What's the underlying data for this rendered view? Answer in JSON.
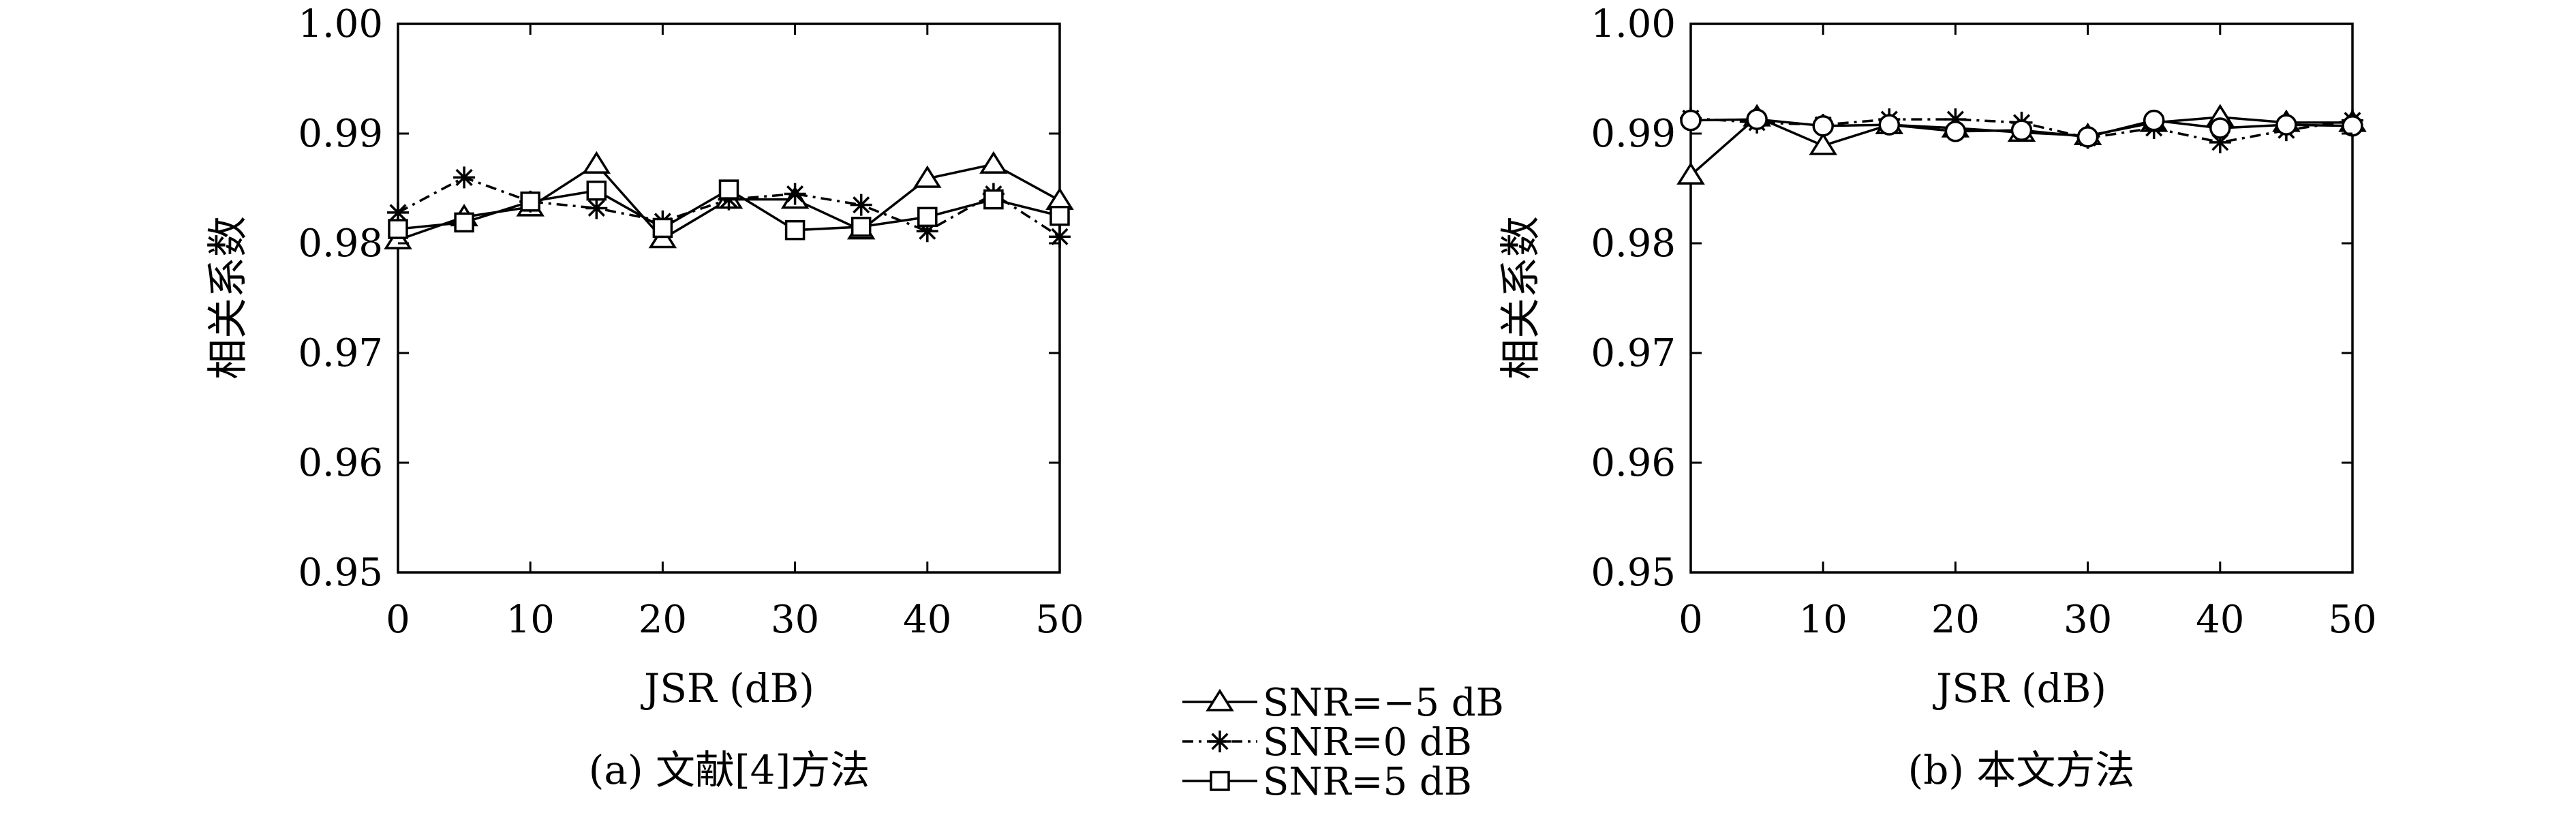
{
  "chart_data": [
    {
      "type": "line",
      "caption": "(a) 文献[4]方法",
      "xlabel": "JSR (dB)",
      "ylabel": "相关系数",
      "xlim": [
        0,
        50
      ],
      "ylim": [
        0.95,
        1.0
      ],
      "xticks": [
        "0",
        "10",
        "20",
        "30",
        "40",
        "50"
      ],
      "yticks": [
        "0.95",
        "0.96",
        "0.97",
        "0.98",
        "0.99",
        "1.00"
      ],
      "x": [
        0,
        5,
        10,
        15,
        20,
        25,
        30,
        35,
        40,
        45,
        50
      ],
      "series": [
        {
          "name": "SNR=−5 dB",
          "marker": "triangle",
          "dash": "solid",
          "values": [
            0.9803,
            0.9824,
            0.9833,
            0.9872,
            0.9804,
            0.984,
            0.984,
            0.9812,
            0.9859,
            0.9872,
            0.9839
          ]
        },
        {
          "name": "SNR=0 dB",
          "marker": "star",
          "dash": "dashdot",
          "values": [
            0.9828,
            0.986,
            0.9838,
            0.9832,
            0.982,
            0.984,
            0.9845,
            0.9835,
            0.9811,
            0.9845,
            0.9806
          ]
        },
        {
          "name": "SNR=5 dB",
          "marker": "square",
          "dash": "solid",
          "values": [
            0.9813,
            0.9819,
            0.9838,
            0.9848,
            0.9814,
            0.9849,
            0.9812,
            0.9815,
            0.9824,
            0.984,
            0.9825
          ]
        }
      ]
    },
    {
      "type": "line",
      "caption": "(b) 本文方法",
      "xlabel": "JSR (dB)",
      "ylabel": "相关系数",
      "xlim": [
        0,
        50
      ],
      "ylim": [
        0.95,
        1.0
      ],
      "xticks": [
        "0",
        "10",
        "20",
        "30",
        "40",
        "50"
      ],
      "yticks": [
        "0.95",
        "0.96",
        "0.97",
        "0.98",
        "0.99",
        "1.00"
      ],
      "x": [
        0,
        5,
        10,
        15,
        20,
        25,
        30,
        35,
        40,
        45,
        50
      ],
      "series": [
        {
          "name": "SNR=−5 dB",
          "marker": "triangle",
          "dash": "solid",
          "values": [
            0.9862,
            0.9915,
            0.9889,
            0.9908,
            0.9905,
            0.9901,
            0.9898,
            0.991,
            0.9915,
            0.991,
            0.991
          ]
        },
        {
          "name": "SNR=0 dB",
          "marker": "star",
          "dash": "dashdot",
          "values": [
            0.9914,
            0.991,
            0.9908,
            0.9913,
            0.9913,
            0.991,
            0.9896,
            0.9905,
            0.9892,
            0.9903,
            0.9912
          ]
        },
        {
          "name": "SNR=5 dB",
          "marker": "circle",
          "dash": "solid",
          "values": [
            0.9912,
            0.9913,
            0.9907,
            0.9908,
            0.9902,
            0.9903,
            0.9897,
            0.9912,
            0.9905,
            0.9908,
            0.9907
          ]
        }
      ]
    }
  ],
  "legend": [
    {
      "label": "SNR=−5 dB",
      "marker": "triangle",
      "dash": "solid"
    },
    {
      "label": "SNR=0 dB",
      "marker": "star",
      "dash": "dashdot"
    },
    {
      "label": "SNR=5 dB",
      "marker": "square",
      "dash": "solid"
    }
  ]
}
